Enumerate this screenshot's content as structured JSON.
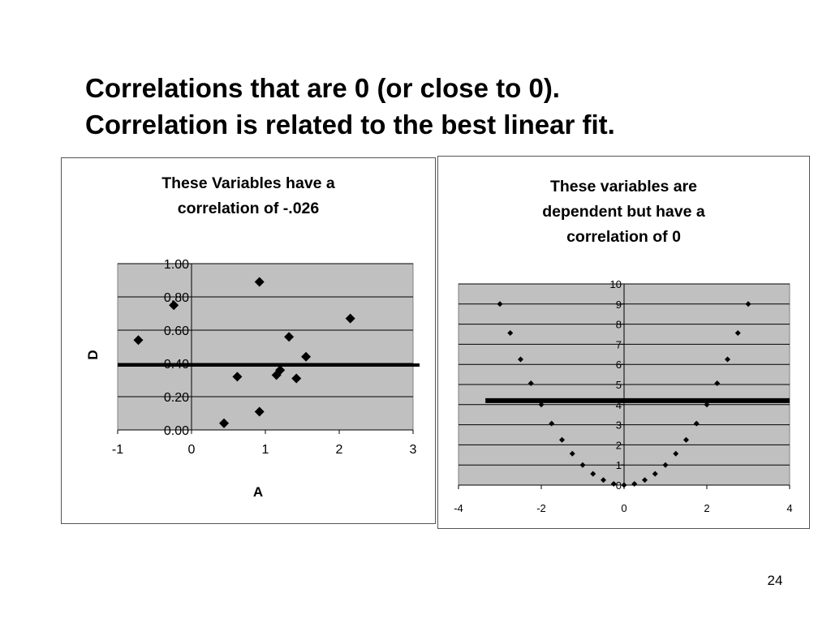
{
  "slide": {
    "title_line1": "Correlations that are 0 (or close to 0).",
    "title_line2": "Correlation is related to the best linear fit.",
    "page_number": "24"
  },
  "left_panel": {
    "caption_line1": "These Variables have a",
    "caption_line2": "correlation of -.026"
  },
  "right_panel": {
    "caption_line1": "These variables are",
    "caption_line2": "dependent but have a",
    "caption_line3": "correlation of 0"
  },
  "colors": {
    "plot_background": "#c0c0c0",
    "gridline": "#000000",
    "marker": "#000000",
    "fit_line": "#000000"
  },
  "chart_data": [
    {
      "type": "scatter",
      "title": "",
      "xlabel": "A",
      "ylabel": "D",
      "xlim": [
        -1,
        3
      ],
      "ylim": [
        0,
        1
      ],
      "xticks": [
        "-1",
        "0",
        "1",
        "2",
        "3"
      ],
      "yticks": [
        "0.00",
        "0.20",
        "0.40",
        "0.60",
        "0.80",
        "1.00"
      ],
      "grid": "horizontal",
      "marker": "diamond",
      "points": [
        {
          "x": -0.72,
          "y": 0.54
        },
        {
          "x": -0.24,
          "y": 0.75
        },
        {
          "x": 0.44,
          "y": 0.04
        },
        {
          "x": 0.62,
          "y": 0.32
        },
        {
          "x": 0.92,
          "y": 0.89
        },
        {
          "x": 0.92,
          "y": 0.11
        },
        {
          "x": 1.15,
          "y": 0.33
        },
        {
          "x": 1.2,
          "y": 0.36
        },
        {
          "x": 1.32,
          "y": 0.56
        },
        {
          "x": 1.42,
          "y": 0.31
        },
        {
          "x": 1.55,
          "y": 0.44
        },
        {
          "x": 2.15,
          "y": 0.67
        }
      ],
      "fit_line": {
        "x": [
          -1,
          3
        ],
        "y": [
          0.39,
          0.39
        ]
      }
    },
    {
      "type": "scatter",
      "title": "",
      "xlabel": "",
      "ylabel": "",
      "xlim": [
        -4,
        4
      ],
      "ylim": [
        0,
        10
      ],
      "xticks": [
        "-4",
        "-2",
        "0",
        "2",
        "4"
      ],
      "yticks": [
        "0",
        "1",
        "2",
        "3",
        "4",
        "5",
        "6",
        "7",
        "8",
        "9",
        "10"
      ],
      "grid": "horizontal",
      "marker": "diamond",
      "points": [
        {
          "x": -3.0,
          "y": 9.0
        },
        {
          "x": -2.75,
          "y": 7.56
        },
        {
          "x": -2.5,
          "y": 6.25
        },
        {
          "x": -2.25,
          "y": 5.06
        },
        {
          "x": -2.0,
          "y": 4.0
        },
        {
          "x": -1.75,
          "y": 3.06
        },
        {
          "x": -1.5,
          "y": 2.25
        },
        {
          "x": -1.25,
          "y": 1.56
        },
        {
          "x": -1.0,
          "y": 1.0
        },
        {
          "x": -0.75,
          "y": 0.56
        },
        {
          "x": -0.5,
          "y": 0.25
        },
        {
          "x": -0.25,
          "y": 0.06
        },
        {
          "x": 0.0,
          "y": 0.0
        },
        {
          "x": 0.25,
          "y": 0.06
        },
        {
          "x": 0.5,
          "y": 0.25
        },
        {
          "x": 0.75,
          "y": 0.56
        },
        {
          "x": 1.0,
          "y": 1.0
        },
        {
          "x": 1.25,
          "y": 1.56
        },
        {
          "x": 1.5,
          "y": 2.25
        },
        {
          "x": 1.75,
          "y": 3.06
        },
        {
          "x": 2.0,
          "y": 4.0
        },
        {
          "x": 2.25,
          "y": 5.06
        },
        {
          "x": 2.5,
          "y": 6.25
        },
        {
          "x": 2.75,
          "y": 7.56
        },
        {
          "x": 3.0,
          "y": 9.0
        }
      ],
      "fit_line": {
        "x": [
          -3.35,
          4
        ],
        "y": [
          4.2,
          4.2
        ]
      }
    }
  ]
}
